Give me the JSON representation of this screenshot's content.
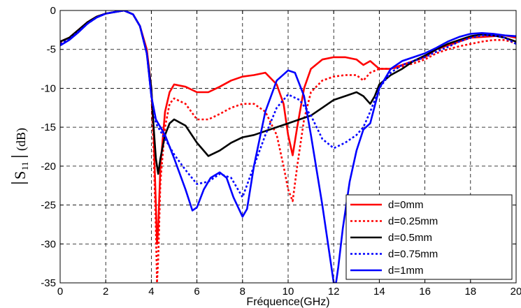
{
  "chart_data": {
    "type": "line",
    "xlabel": "Fréquence(GHz)",
    "ylabel": {
      "main": "S",
      "subscript": "11",
      "unit": "(dB)"
    },
    "xlim": [
      0,
      20
    ],
    "ylim": [
      -35,
      0
    ],
    "xticks": [
      0,
      2,
      4,
      6,
      8,
      10,
      12,
      14,
      16,
      18,
      20
    ],
    "yticks": [
      0,
      -5,
      -10,
      -15,
      -20,
      -25,
      -30,
      -35
    ],
    "grid": true,
    "legend_position": "bottom-right",
    "series": [
      {
        "name": "d=0mm",
        "color": "#ff0000",
        "dash": "solid",
        "x": [
          0,
          0.4,
          0.8,
          1.2,
          1.6,
          2.0,
          2.4,
          2.8,
          3.2,
          3.5,
          3.8,
          4.0,
          4.1,
          4.2,
          4.25,
          4.3,
          4.4,
          4.6,
          4.8,
          5.0,
          5.5,
          6.0,
          6.5,
          7.0,
          7.5,
          8.0,
          8.5,
          9.0,
          9.5,
          9.8,
          10.0,
          10.2,
          10.4,
          10.7,
          11.0,
          11.5,
          12.0,
          12.5,
          13.0,
          13.3,
          13.6,
          14.0,
          14.5,
          15.0,
          15.5,
          16.0,
          16.5,
          17.0,
          17.5,
          18.0,
          18.5,
          19.0,
          19.5,
          20.0
        ],
        "y": [
          -4.0,
          -3.5,
          -2.5,
          -1.5,
          -0.8,
          -0.4,
          -0.2,
          0,
          -0.5,
          -2.0,
          -5.0,
          -10.0,
          -16.0,
          -25.0,
          -30.0,
          -28.0,
          -20.0,
          -13.0,
          -10.5,
          -9.5,
          -9.8,
          -10.5,
          -10.5,
          -9.8,
          -9.0,
          -8.5,
          -8.3,
          -8.0,
          -9.5,
          -12.0,
          -16.0,
          -18.6,
          -15.0,
          -10.0,
          -7.5,
          -6.3,
          -6.0,
          -6.0,
          -6.3,
          -7.0,
          -6.5,
          -7.5,
          -7.5,
          -7.0,
          -6.5,
          -6.0,
          -5.0,
          -4.5,
          -4.0,
          -3.5,
          -3.4,
          -3.3,
          -3.2,
          -3.5
        ]
      },
      {
        "name": "d=0.25mm",
        "color": "#ff0000",
        "dash": "dotted",
        "x": [
          0,
          0.4,
          0.8,
          1.2,
          1.6,
          2.0,
          2.4,
          2.8,
          3.2,
          3.5,
          3.8,
          4.0,
          4.1,
          4.2,
          4.25,
          4.3,
          4.4,
          4.6,
          4.8,
          5.0,
          5.5,
          6.0,
          6.5,
          7.0,
          7.5,
          8.0,
          8.5,
          9.0,
          9.5,
          9.8,
          10.0,
          10.2,
          10.4,
          10.7,
          11.0,
          11.5,
          12.0,
          12.5,
          13.0,
          13.3,
          13.6,
          14.0,
          14.5,
          15.0,
          15.5,
          16.0,
          16.5,
          17.0,
          17.5,
          18.0,
          18.5,
          19.0,
          19.5,
          20.0
        ],
        "y": [
          -4.2,
          -3.6,
          -2.6,
          -1.6,
          -0.8,
          -0.4,
          -0.2,
          0,
          -0.5,
          -2.0,
          -5.2,
          -10.5,
          -18.0,
          -28.0,
          -35.0,
          -32.0,
          -22.0,
          -15.0,
          -12.0,
          -11.3,
          -12.0,
          -14.0,
          -14.0,
          -13.3,
          -12.5,
          -12.0,
          -12.0,
          -13.0,
          -16.0,
          -20.0,
          -23.0,
          -24.5,
          -20.0,
          -14.0,
          -10.5,
          -9.0,
          -8.5,
          -8.3,
          -8.3,
          -9.0,
          -8.0,
          -7.5,
          -7.5,
          -7.2,
          -6.8,
          -6.3,
          -5.5,
          -5.0,
          -4.6,
          -4.3,
          -4.0,
          -3.8,
          -3.8,
          -4.2
        ]
      },
      {
        "name": "d=0.5mm",
        "color": "#000000",
        "dash": "solid",
        "x": [
          0,
          0.4,
          0.8,
          1.2,
          1.6,
          2.0,
          2.4,
          2.8,
          3.2,
          3.5,
          3.8,
          4.0,
          4.1,
          4.2,
          4.3,
          4.4,
          4.6,
          4.8,
          5.0,
          5.5,
          6.0,
          6.5,
          7.0,
          7.5,
          8.0,
          8.5,
          9.0,
          9.5,
          10.0,
          10.5,
          11.0,
          11.5,
          12.0,
          12.5,
          13.0,
          13.3,
          13.6,
          13.8,
          14.0,
          14.5,
          15.0,
          15.5,
          16.0,
          16.5,
          17.0,
          17.5,
          18.0,
          18.5,
          19.0,
          19.5,
          20.0
        ],
        "y": [
          -4.0,
          -3.5,
          -2.5,
          -1.5,
          -0.8,
          -0.4,
          -0.2,
          0,
          -0.5,
          -2.0,
          -5.5,
          -10.0,
          -15.0,
          -19.0,
          -21.0,
          -19.0,
          -16.0,
          -14.5,
          -14.0,
          -14.8,
          -17.0,
          -18.7,
          -18.0,
          -17.0,
          -16.3,
          -16.0,
          -15.5,
          -15.0,
          -14.5,
          -14.0,
          -13.5,
          -12.5,
          -11.5,
          -11.0,
          -10.5,
          -11.0,
          -12.0,
          -11.0,
          -9.5,
          -8.3,
          -7.5,
          -6.5,
          -5.8,
          -5.0,
          -4.3,
          -3.8,
          -3.3,
          -3.1,
          -3.2,
          -3.5,
          -4.0
        ]
      },
      {
        "name": "d=0.75mm",
        "color": "#0000ff",
        "dash": "dotted",
        "x": [
          0,
          0.4,
          0.8,
          1.2,
          1.6,
          2.0,
          2.4,
          2.8,
          3.2,
          3.5,
          3.8,
          4.0,
          4.2,
          4.4,
          4.6,
          4.8,
          5.0,
          5.5,
          6.0,
          6.5,
          7.0,
          7.5,
          8.0,
          8.5,
          9.0,
          9.5,
          10.0,
          10.5,
          11.0,
          11.5,
          12.0,
          12.5,
          13.0,
          13.3,
          13.6,
          14.0,
          14.5,
          15.0,
          15.5,
          16.0,
          16.5,
          17.0,
          17.5,
          18.0,
          18.5,
          19.0,
          19.5,
          20.0
        ],
        "y": [
          -4.3,
          -3.7,
          -2.7,
          -1.7,
          -0.9,
          -0.4,
          -0.2,
          0,
          -0.5,
          -2.0,
          -5.5,
          -11.0,
          -14.5,
          -15.5,
          -16.5,
          -17.5,
          -18.5,
          -20.5,
          -22.3,
          -22.0,
          -21.0,
          -21.5,
          -24.0,
          -20.0,
          -16.0,
          -12.5,
          -10.8,
          -11.5,
          -13.5,
          -16.5,
          -17.7,
          -17.0,
          -16.0,
          -15.0,
          -13.0,
          -10.0,
          -8.0,
          -7.0,
          -6.5,
          -6.0,
          -5.3,
          -4.7,
          -4.0,
          -3.5,
          -3.2,
          -3.2,
          -3.5,
          -4.3
        ]
      },
      {
        "name": "d=1mm",
        "color": "#0000ff",
        "dash": "solid",
        "x": [
          0,
          0.4,
          0.8,
          1.2,
          1.6,
          2.0,
          2.4,
          2.8,
          3.2,
          3.5,
          3.8,
          4.0,
          4.2,
          4.4,
          4.6,
          5.0,
          5.5,
          5.8,
          6.0,
          6.3,
          6.6,
          7.0,
          7.3,
          7.6,
          8.0,
          8.2,
          8.5,
          9.0,
          9.5,
          10.0,
          10.3,
          10.7,
          11.0,
          11.5,
          11.8,
          12.0,
          12.1,
          12.2,
          12.4,
          12.7,
          13.0,
          13.3,
          13.6,
          14.0,
          14.5,
          15.0,
          15.5,
          16.0,
          16.5,
          17.0,
          17.5,
          18.0,
          18.5,
          19.0,
          19.5,
          20.0
        ],
        "y": [
          -4.5,
          -3.8,
          -2.8,
          -1.7,
          -0.9,
          -0.4,
          -0.2,
          0,
          -0.5,
          -2.0,
          -5.5,
          -11.0,
          -14.0,
          -15.0,
          -16.0,
          -19.0,
          -23.0,
          -25.7,
          -25.3,
          -23.0,
          -21.5,
          -20.8,
          -21.5,
          -24.0,
          -26.5,
          -25.5,
          -20.0,
          -13.0,
          -9.0,
          -7.7,
          -8.0,
          -11.0,
          -16.0,
          -25.0,
          -31.0,
          -35.0,
          -35.0,
          -33.0,
          -28.0,
          -22.0,
          -18.0,
          -15.3,
          -14.5,
          -10.0,
          -7.5,
          -6.5,
          -6.0,
          -5.5,
          -4.8,
          -4.0,
          -3.4,
          -3.0,
          -2.9,
          -3.0,
          -3.2,
          -3.3
        ]
      }
    ]
  }
}
